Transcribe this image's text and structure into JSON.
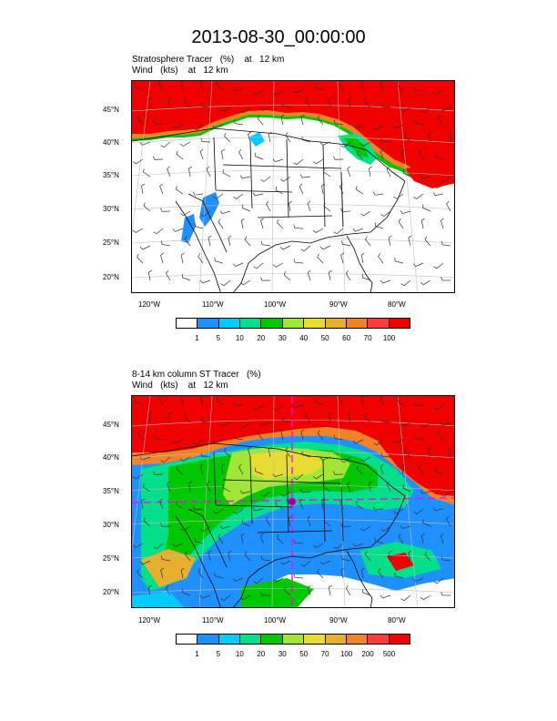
{
  "title": "2013-08-30_00:00:00",
  "panels": [
    {
      "line1": "Stratosphere Tracer   (%)    at   12 km",
      "line2": "Wind   (kts)    at   12 km",
      "lat_labels": [
        "45°N",
        "40°N",
        "35°N",
        "30°N",
        "25°N",
        "20°N"
      ],
      "lon_labels": [
        "120°W",
        "110°W",
        "100°W",
        "90°W",
        "80°W"
      ],
      "legend_labels": [
        "1",
        "5",
        "10",
        "20",
        "30",
        "40",
        "50",
        "60",
        "70",
        "100"
      ],
      "legend_colors": [
        "#ffffff",
        "#1e90ff",
        "#00ccff",
        "#00e08a",
        "#00c800",
        "#a0e632",
        "#e6dc32",
        "#e6af2d",
        "#f08228",
        "#fa3c3c",
        "#f00000"
      ]
    },
    {
      "line1": "8-14 km column ST Tracer   (%)",
      "line2": "Wind   (kts)    at   12 km",
      "lat_labels": [
        "45°N",
        "40°N",
        "35°N",
        "30°N",
        "25°N",
        "20°N"
      ],
      "lon_labels": [
        "120°W",
        "110°W",
        "100°W",
        "90°W",
        "80°W"
      ],
      "legend_labels": [
        "1",
        "5",
        "10",
        "20",
        "30",
        "50",
        "70",
        "100",
        "200",
        "500"
      ],
      "legend_colors": [
        "#ffffff",
        "#1e90ff",
        "#00ccff",
        "#00e08a",
        "#00c800",
        "#a0e632",
        "#e6dc32",
        "#e6af2d",
        "#f08228",
        "#fa3c3c",
        "#f00000"
      ]
    }
  ]
}
